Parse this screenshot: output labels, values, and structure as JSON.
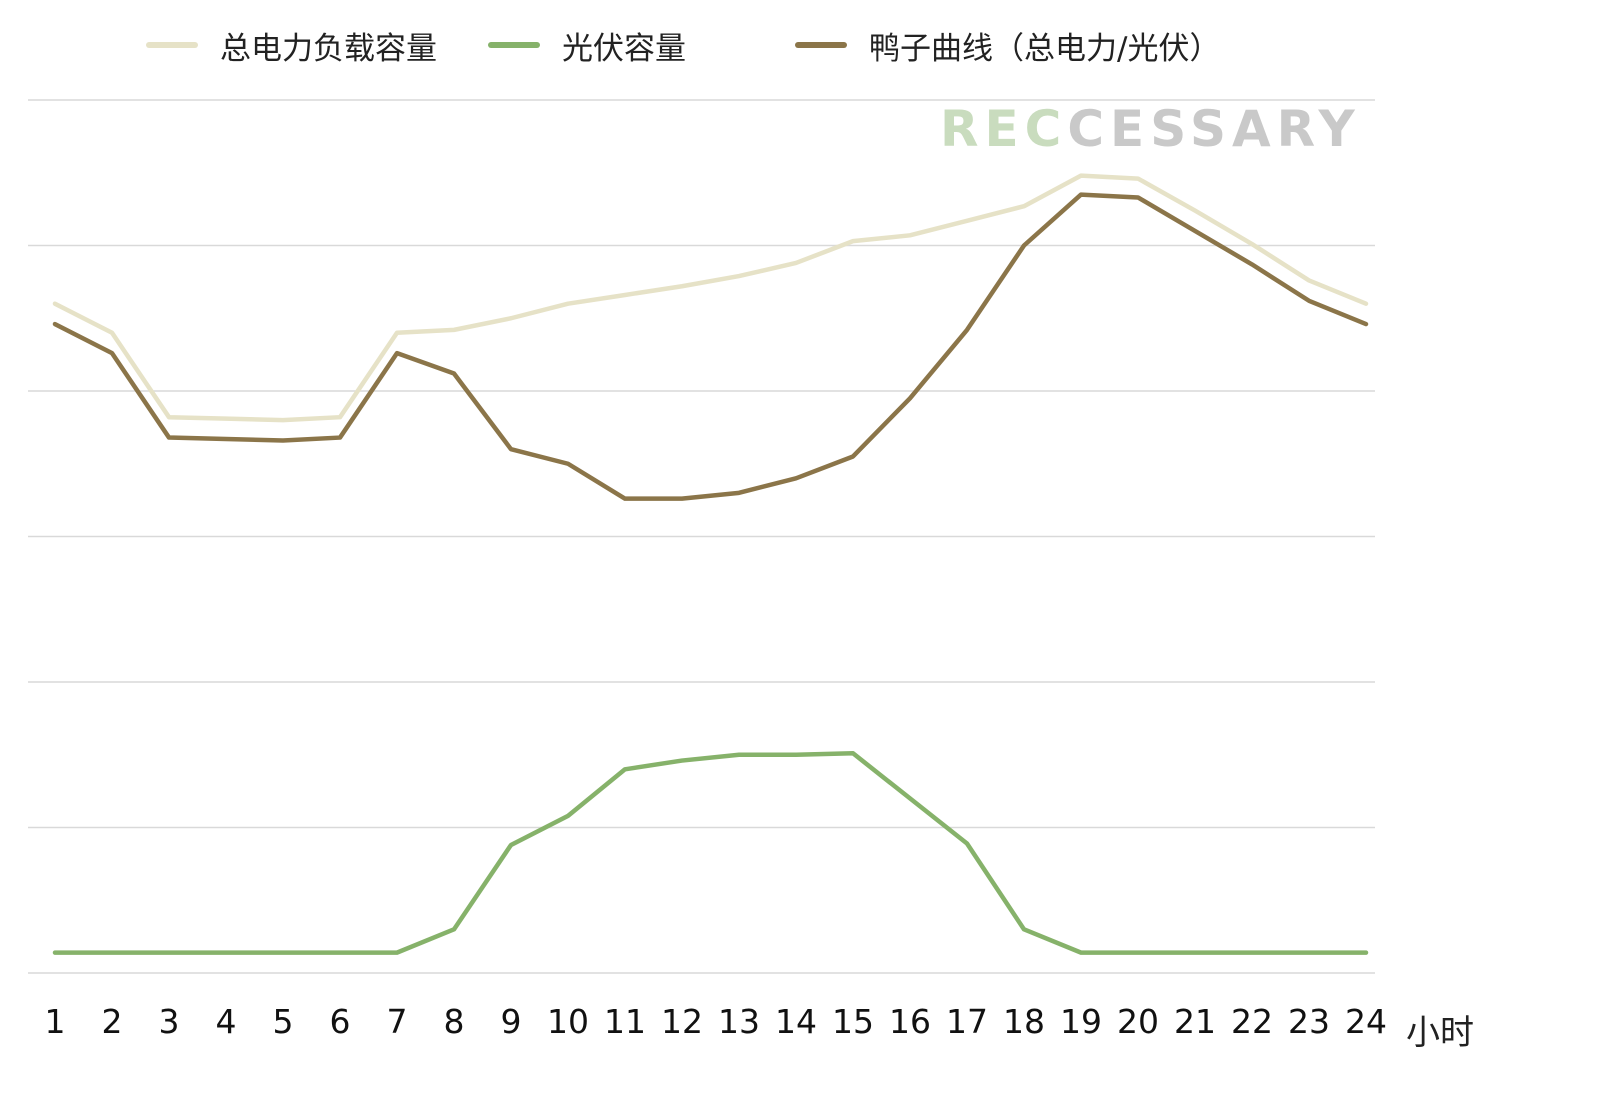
{
  "chart_data": {
    "type": "line",
    "x": [
      1,
      2,
      3,
      4,
      5,
      6,
      7,
      8,
      9,
      10,
      11,
      12,
      13,
      14,
      15,
      16,
      17,
      18,
      19,
      20,
      21,
      22,
      23,
      24
    ],
    "x_unit_label": "小时",
    "ylim": [
      0,
      6
    ],
    "grid": true,
    "legend_position": "top",
    "series": [
      {
        "name": "总电力负载容量",
        "color": "#e6e2c7",
        "values": [
          4.6,
          4.4,
          3.82,
          3.81,
          3.8,
          3.82,
          4.4,
          4.42,
          4.5,
          4.6,
          4.66,
          4.72,
          4.79,
          4.88,
          5.03,
          5.07,
          5.17,
          5.27,
          5.48,
          5.46,
          5.24,
          5.01,
          4.76,
          4.6
        ]
      },
      {
        "name": "光伏容量",
        "color": "#86b26a",
        "values": [
          0.14,
          0.14,
          0.14,
          0.14,
          0.14,
          0.14,
          0.14,
          0.3,
          0.88,
          1.08,
          1.4,
          1.46,
          1.5,
          1.5,
          1.51,
          1.2,
          0.89,
          0.3,
          0.14,
          0.14,
          0.14,
          0.14,
          0.14,
          0.14
        ]
      },
      {
        "name": "鸭子曲线（总电力/光伏）",
        "color": "#8b7549",
        "values": [
          4.46,
          4.26,
          3.68,
          3.67,
          3.66,
          3.68,
          4.26,
          4.12,
          3.6,
          3.5,
          3.26,
          3.26,
          3.3,
          3.4,
          3.55,
          3.95,
          4.42,
          5.0,
          5.35,
          5.33,
          5.1,
          4.87,
          4.62,
          4.46
        ]
      }
    ]
  },
  "watermark": {
    "part_green": "REC",
    "part_gray": "CESSARY"
  }
}
